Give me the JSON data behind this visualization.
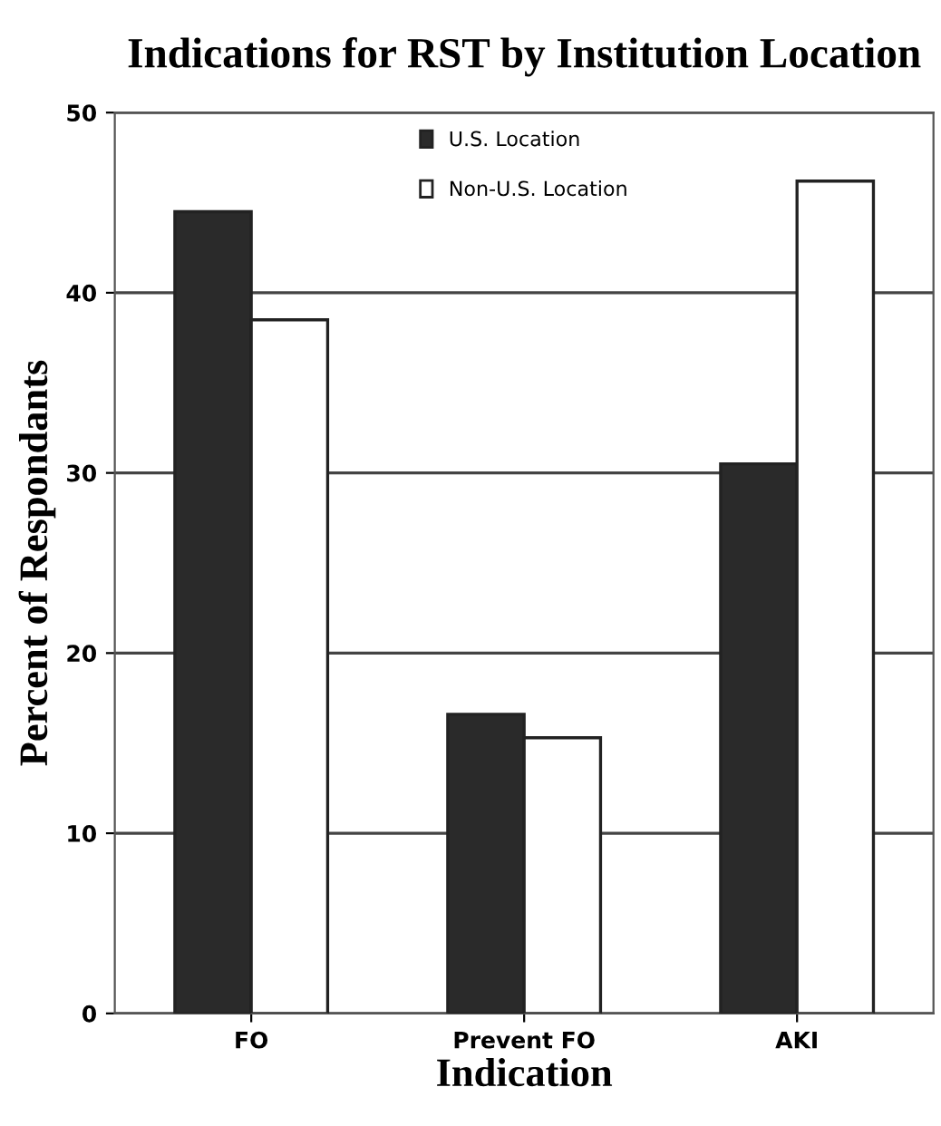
{
  "chart_data": {
    "type": "bar",
    "title": "Indications for RST by Institution Location",
    "xlabel": "Indication",
    "ylabel": "Percent of Respondants",
    "categories": [
      "FO",
      "Prevent FO",
      "AKI"
    ],
    "series": [
      {
        "name": "U.S. Location",
        "color": "#2a2a2a",
        "values": [
          44.5,
          16.6,
          30.5
        ]
      },
      {
        "name": "Non-U.S. Location",
        "color": "#ffffff",
        "values": [
          38.5,
          15.3,
          46.2
        ]
      }
    ],
    "ylim": [
      0,
      50
    ],
    "yticks": [
      0,
      10,
      20,
      30,
      40,
      50
    ],
    "grid": "y",
    "legend": "top"
  }
}
